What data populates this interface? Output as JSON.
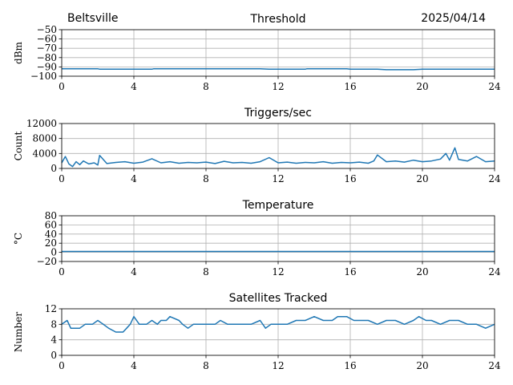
{
  "header": {
    "site": "Beltsville",
    "date": "2025/04/14"
  },
  "chart_data": [
    {
      "type": "line",
      "title": "Threshold",
      "ylabel": "dBm",
      "xlim": [
        0,
        24
      ],
      "ylim": [
        -100,
        -50
      ],
      "x_ticks": [
        0,
        4,
        8,
        12,
        16,
        20,
        24
      ],
      "y_ticks": [
        -100,
        -90,
        -80,
        -70,
        -60,
        -50
      ],
      "y_tick_labels": [
        "−100",
        "−90",
        "−80",
        "−70",
        "−60",
        "−50"
      ],
      "grid": true,
      "series": [
        {
          "x": [
            0,
            2,
            2.1,
            5,
            5.1,
            11,
            11.5,
            13.5,
            13.6,
            15.8,
            16,
            17.5,
            18,
            19.5,
            20,
            24
          ],
          "y": [
            -92,
            -92,
            -92.5,
            -92.5,
            -92,
            -92,
            -92.5,
            -92.5,
            -92,
            -92,
            -92.5,
            -92.5,
            -93,
            -93,
            -92.5,
            -92.5
          ]
        }
      ]
    },
    {
      "type": "line",
      "title": "Triggers/sec",
      "ylabel": "Count",
      "xlim": [
        0,
        24
      ],
      "ylim": [
        0,
        12000
      ],
      "x_ticks": [
        0,
        4,
        8,
        12,
        16,
        20,
        24
      ],
      "y_ticks": [
        0,
        4000,
        8000,
        12000
      ],
      "y_tick_labels": [
        "0",
        "4000",
        "8000",
        "12000"
      ],
      "grid": true,
      "series": [
        {
          "x": [
            0,
            0.2,
            0.4,
            0.6,
            0.8,
            1.0,
            1.2,
            1.5,
            1.8,
            2.0,
            2.1,
            2.5,
            3,
            3.5,
            4,
            4.5,
            5,
            5.5,
            6,
            6.5,
            7,
            7.5,
            8,
            8.5,
            9,
            9.5,
            10,
            10.5,
            11,
            11.5,
            12,
            12.5,
            13,
            13.5,
            14,
            14.5,
            15,
            15.5,
            16,
            16.5,
            17,
            17.3,
            17.5,
            18,
            18.5,
            19,
            19.5,
            20,
            20.5,
            21,
            21.3,
            21.5,
            21.8,
            22,
            22.5,
            23,
            23.5,
            24
          ],
          "y": [
            1500,
            3200,
            1200,
            500,
            1800,
            1000,
            2000,
            1200,
            1500,
            900,
            3500,
            1300,
            1600,
            1800,
            1400,
            1700,
            2600,
            1500,
            1800,
            1400,
            1600,
            1500,
            1700,
            1300,
            1900,
            1500,
            1600,
            1400,
            1800,
            2900,
            1500,
            1700,
            1400,
            1600,
            1500,
            1800,
            1400,
            1600,
            1500,
            1700,
            1400,
            2000,
            3600,
            1800,
            2000,
            1700,
            2200,
            1800,
            2000,
            2500,
            4000,
            2200,
            5500,
            2400,
            2000,
            3200,
            1800,
            2000
          ]
        }
      ]
    },
    {
      "type": "line",
      "title": "Temperature",
      "ylabel": "°C",
      "xlim": [
        0,
        24
      ],
      "ylim": [
        -20,
        80
      ],
      "x_ticks": [
        0,
        4,
        8,
        12,
        16,
        20,
        24
      ],
      "y_ticks": [
        -20,
        0,
        20,
        40,
        60,
        80
      ],
      "y_tick_labels": [
        "−20",
        "0",
        "20",
        "40",
        "60",
        "80"
      ],
      "grid": true,
      "series": [
        {
          "x": [
            0,
            24
          ],
          "y": [
            2,
            2
          ]
        }
      ]
    },
    {
      "type": "line",
      "title": "Satellites Tracked",
      "ylabel": "Number",
      "xlim": [
        0,
        24
      ],
      "ylim": [
        0,
        12
      ],
      "x_ticks": [
        0,
        4,
        8,
        12,
        16,
        20,
        24
      ],
      "y_ticks": [
        0,
        4,
        8,
        12
      ],
      "y_tick_labels": [
        "0",
        "4",
        "8",
        "12"
      ],
      "grid": true,
      "series": [
        {
          "x": [
            0,
            0.3,
            0.5,
            1.0,
            1.3,
            1.7,
            2.0,
            2.3,
            2.6,
            3.0,
            3.4,
            3.6,
            3.8,
            4.0,
            4.3,
            4.7,
            5.0,
            5.3,
            5.5,
            5.8,
            6.0,
            6.5,
            6.7,
            7.0,
            7.3,
            7.6,
            8.0,
            8.5,
            8.8,
            9.2,
            9.6,
            10.0,
            10.5,
            11.0,
            11.3,
            11.6,
            12.0,
            12.5,
            13.0,
            13.5,
            14.0,
            14.5,
            15.0,
            15.3,
            15.8,
            16.2,
            16.6,
            17.0,
            17.5,
            18.0,
            18.5,
            19.0,
            19.5,
            19.8,
            20.2,
            20.5,
            21.0,
            21.5,
            22.0,
            22.5,
            23.0,
            23.5,
            24.0
          ],
          "y": [
            8,
            9,
            7,
            7,
            8,
            8,
            9,
            8,
            7,
            6,
            6,
            7,
            8,
            10,
            8,
            8,
            9,
            8,
            9,
            9,
            10,
            9,
            8,
            7,
            8,
            8,
            8,
            8,
            9,
            8,
            8,
            8,
            8,
            9,
            7,
            8,
            8,
            8,
            9,
            9,
            10,
            9,
            9,
            10,
            10,
            9,
            9,
            9,
            8,
            9,
            9,
            8,
            9,
            10,
            9,
            9,
            8,
            9,
            9,
            8,
            8,
            7,
            8
          ]
        }
      ]
    }
  ]
}
